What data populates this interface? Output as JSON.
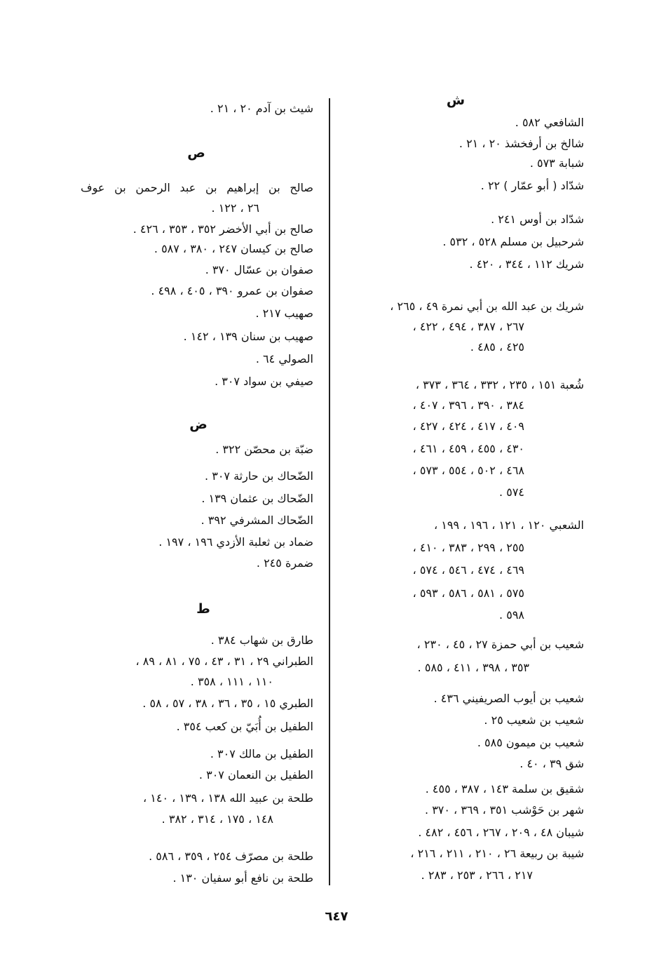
{
  "page_number": "٦٤٧",
  "right_column": {
    "lines": [
      {
        "kind": "heading",
        "text": "ش"
      },
      {
        "kind": "line",
        "text": "الشافعي ٥٨٢ ."
      },
      {
        "kind": "line",
        "text": "شالخ بن أرفخشذ ٢٠ ، ٢١ ."
      },
      {
        "kind": "line",
        "text": "شبابة ٥٧٣ ."
      },
      {
        "kind": "line",
        "text": "شدّاد ( أبو عمّار ) ٢٢ ."
      },
      {
        "kind": "line",
        "text": "شدّاد بن أوس ٢٤١ ."
      },
      {
        "kind": "line",
        "text": "شرحبيل بن مسلم ٥٢٨ ، ٥٣٢ ."
      },
      {
        "kind": "line",
        "text": "شريك ١١٢ ، ٣٤٤ ، ٤٢٠ ."
      },
      {
        "kind": "line",
        "text": "شريك بن عبد الله بن أبي نمرة ٤٩ ، ٢٦٥ ،"
      },
      {
        "kind": "cont",
        "text": "٢٦٧ ، ٣٨٧ ، ٤٩٤ ، ٤٢٢ ،"
      },
      {
        "kind": "cont",
        "text": "٤٢٥ ، ٤٨٥ ."
      },
      {
        "kind": "line",
        "text": "شُعبة ١٥١ ، ٢٣٥ ، ٣٣٢ ، ٣٦٤ ، ٣٧٣ ،"
      },
      {
        "kind": "cont",
        "text": "٣٨٤ ، ٣٩٠ ، ٣٩٦ ، ٤٠٧ ،"
      },
      {
        "kind": "cont",
        "text": "٤٠٩ ، ٤١٧ ، ٤٢٤ ، ٤٢٧ ،"
      },
      {
        "kind": "cont",
        "text": "٤٣٠ ، ٤٥٥ ، ٤٥٩ ، ٤٦١ ،"
      },
      {
        "kind": "cont",
        "text": "٤٦٨ ، ٥٠٢ ، ٥٥٤ ، ٥٧٣ ،"
      },
      {
        "kind": "cont",
        "text": "٥٧٤ ."
      },
      {
        "kind": "line",
        "text": "الشعبي ١٢٠ ، ١٢١ ، ١٩٦ ، ١٩٩ ،"
      },
      {
        "kind": "cont",
        "text": "٢٥٥ ، ٢٩٩ ، ٣٨٣ ، ٤١٠ ،"
      },
      {
        "kind": "cont",
        "text": "٤٦٩ ، ٤٧٤ ، ٥٤٦ ، ٥٧٤ ،"
      },
      {
        "kind": "cont",
        "text": "٥٧٥ ، ٥٨١ ، ٥٨٦ ، ٥٩٣ ،"
      },
      {
        "kind": "cont",
        "text": "٥٩٨ ."
      },
      {
        "kind": "line",
        "text": "شعيب بن أبي حمزة ٢٧ ، ٤٥ ، ٢٣٠ ،"
      },
      {
        "kind": "cont",
        "text": "٣٥٣ ، ٣٩٨ ، ٤١١ ، ٥٨٥ ."
      },
      {
        "kind": "line",
        "text": "شعيب بن أيوب الصريفيني ٤٣٦ ."
      },
      {
        "kind": "line",
        "text": "شعيب بن شعيب ٢٥ ."
      },
      {
        "kind": "line",
        "text": "شعيب بن ميمون ٥٨٥ ."
      },
      {
        "kind": "line",
        "text": "شق ٣٩ ، ٤٠ ."
      },
      {
        "kind": "line",
        "text": "شقيق بن سلمة ١٤٣ ، ٣٨٧ ، ٤٥٥ ."
      },
      {
        "kind": "line",
        "text": "شهر بن حَوْشب ٣٥١ ، ٣٦٩ ، ٣٧٠ ."
      },
      {
        "kind": "line",
        "text": "شيبان ٤٨ ، ٢٠٩ ، ٢٦٧ ، ٤٥٦ ، ٤٨٢ ."
      },
      {
        "kind": "line",
        "text": "شيبة بن ربيعة ٢٦ ، ٢١٠ ، ٢١١ ، ٢١٦ ،"
      },
      {
        "kind": "cont",
        "text": "٢١٧ ، ٢٦٦ ، ٢٥٣ ، ٢٨٣ ."
      }
    ]
  },
  "left_column": {
    "lines": [
      {
        "kind": "line",
        "text": "شيث بن آدم ٢٠ ، ٢١ ."
      },
      {
        "kind": "heading",
        "text": "ص"
      },
      {
        "kind": "line",
        "text": "صالح بن إبراهيم بن عبد الرحمن بن عوف"
      },
      {
        "kind": "cont",
        "text": "٢٦ ، ١٢٢ ."
      },
      {
        "kind": "line",
        "text": "صالح بن أبي الأخضر ٣٥٢ ، ٣٥٣ ، ٤٢٦ ."
      },
      {
        "kind": "line",
        "text": "صالح بن كيسان ٢٤٧ ، ٣٨٠ ، ٥٨٧ ."
      },
      {
        "kind": "line",
        "text": "صفوان بن عسّال ٣٧٠ ."
      },
      {
        "kind": "line",
        "text": "صفوان بن عمرو ٣٩٠ ، ٤٠٥ ، ٤٩٨ ."
      },
      {
        "kind": "line",
        "text": "صهيب ٢١٧ ."
      },
      {
        "kind": "line",
        "text": "صهيب بن سنان ١٣٩ ، ١٤٢ ."
      },
      {
        "kind": "line",
        "text": "الصولي ٦٤ ."
      },
      {
        "kind": "line",
        "text": "صيفي بن سواد ٣٠٧ ."
      },
      {
        "kind": "heading",
        "text": "ض"
      },
      {
        "kind": "line",
        "text": "ضبّة بن محصّن ٣٢٢ ."
      },
      {
        "kind": "line",
        "text": "الضّحاك بن حارثة ٣٠٧ ."
      },
      {
        "kind": "line",
        "text": "الضّحاك بن عثمان ١٣٩ ."
      },
      {
        "kind": "line",
        "text": "الضّحاك المشرفي ٣٩٢ ."
      },
      {
        "kind": "line",
        "text": "ضماد بن ثعلبة الأزدي ١٩٦ ، ١٩٧ ."
      },
      {
        "kind": "line",
        "text": "ضمرة ٢٤٥ ."
      },
      {
        "kind": "heading",
        "text": "ط"
      },
      {
        "kind": "line",
        "text": "طارق بن شهاب ٣٨٤ ."
      },
      {
        "kind": "line",
        "text": "الطبراني ٢٩ ، ٣١ ، ٤٣ ، ٧٥ ، ٨١ ، ٨٩ ،"
      },
      {
        "kind": "cont",
        "text": "١١٠ ، ١١١ ، ٣٥٨ ."
      },
      {
        "kind": "line",
        "text": "الطبري ١٥ ، ٣٥ ، ٣٦ ، ٣٨ ، ٥٧ ، ٥٨ ."
      },
      {
        "kind": "line",
        "text": "الطفيل بن أُبَيّ بن كعب ٣٥٤ ."
      },
      {
        "kind": "line",
        "text": "الطفيل بن مالك ٣٠٧ ."
      },
      {
        "kind": "line",
        "text": "الطفيل بن النعمان ٣٠٧ ."
      },
      {
        "kind": "line",
        "text": "طلحة بن عبيد الله ١٣٨ ، ١٣٩ ، ١٤٠ ،"
      },
      {
        "kind": "cont",
        "text": "١٤٨ ، ١٧٥ ، ٣١٤ ، ٣٨٢ ."
      },
      {
        "kind": "line",
        "text": "طلحة بن مصرّف ٢٥٤ ، ٣٥٩ ، ٥٨٦ ."
      },
      {
        "kind": "line",
        "text": "طلحة بن نافع أبو سفيان ١٣٠ ."
      }
    ]
  }
}
